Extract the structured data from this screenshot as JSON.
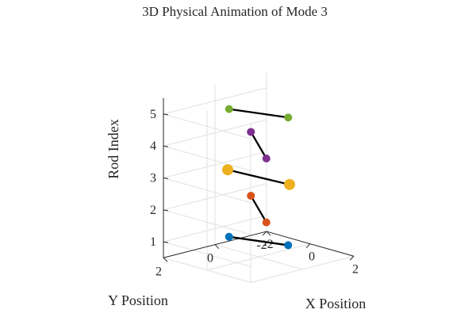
{
  "chart_data": {
    "type": "scatter",
    "title": "3D Physical Animation of Mode 3",
    "xlabel": "X Position",
    "ylabel": "Y Position",
    "zlabel": "Rod Index",
    "xlim": [
      -2,
      2
    ],
    "ylim": [
      -2,
      2
    ],
    "zlim": [
      0.5,
      5.5
    ],
    "x_ticks": [
      -2,
      0,
      2
    ],
    "y_ticks": [
      -2,
      0,
      2
    ],
    "z_ticks": [
      1,
      2,
      3,
      4,
      5
    ],
    "grid": true,
    "rods": [
      {
        "z": 1,
        "color": "#0072BD",
        "ends": [
          {
            "x": -1.0,
            "y": 0.3,
            "large": false
          },
          {
            "x": 1.0,
            "y": -0.3,
            "large": false
          }
        ]
      },
      {
        "z": 2,
        "color": "#D95319",
        "ends": [
          {
            "x": 1.3,
            "y": 0.8,
            "large": false
          },
          {
            "x": -1.3,
            "y": -0.8,
            "large": false
          }
        ]
      },
      {
        "z": 3,
        "color": "#EDB120",
        "ends": [
          {
            "x": -1.3,
            "y": 0.1,
            "large": true
          },
          {
            "x": 1.3,
            "y": -0.1,
            "large": true
          }
        ]
      },
      {
        "z": 4,
        "color": "#7E2F8E",
        "ends": [
          {
            "x": 1.3,
            "y": 0.8,
            "large": false
          },
          {
            "x": -1.3,
            "y": -0.8,
            "large": false
          }
        ]
      },
      {
        "z": 5,
        "color": "#77AC30",
        "ends": [
          {
            "x": -1.0,
            "y": 0.3,
            "large": false
          },
          {
            "x": 1.0,
            "y": -0.3,
            "large": false
          }
        ]
      }
    ]
  }
}
